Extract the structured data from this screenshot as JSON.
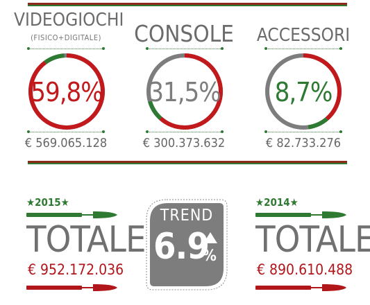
{
  "colors": {
    "red": "#c1191c",
    "green": "#2f7a33",
    "gray": "#7d7d7d",
    "dark_red": "#8b2a19"
  },
  "categories": [
    {
      "title": "VIDEOGIOCHI",
      "subtitle": "(FISICO+DIGITALE)",
      "percent_label": "59,8%",
      "percent": 59.8,
      "percent_color": "#c1191c",
      "amount": "€ 569.065.128"
    },
    {
      "title": "CONSOLE",
      "subtitle": "",
      "percent_label": "31,5%",
      "percent": 31.5,
      "percent_color": "#7d7d7d",
      "amount": "€ 300.373.632"
    },
    {
      "title": "ACCESSORI",
      "subtitle": "",
      "percent_label": "8,7%",
      "percent": 8.7,
      "percent_color": "#2f7a33",
      "amount": "€ 82.733.276"
    }
  ],
  "totals": {
    "left": {
      "year": "★2015★",
      "label": "TOTALE",
      "amount": "€ 952.172.036"
    },
    "right": {
      "year": "★2014★",
      "label": "TOTALE",
      "amount": "€ 890.610.488"
    }
  },
  "trend": {
    "label": "TREND",
    "value": "6.9",
    "percent_sign": "%",
    "direction": "up"
  }
}
